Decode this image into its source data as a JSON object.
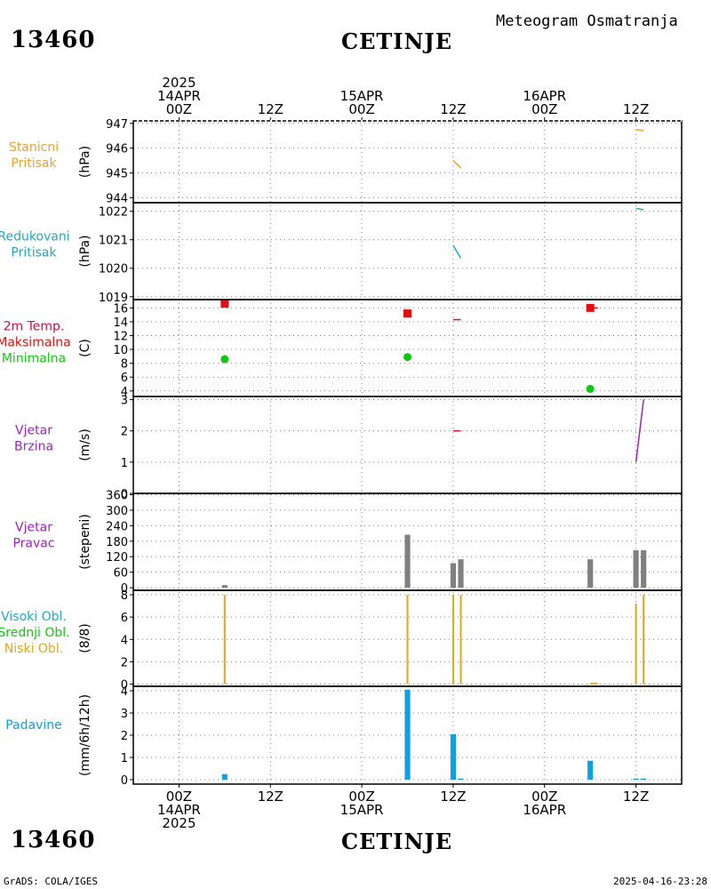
{
  "header": {
    "station_id": "13460",
    "station_name": "CETINJE",
    "title": "Meteogram Osmatranja"
  },
  "footer": {
    "left": "GrADS: COLA/IGES",
    "right": "2025-04-16-23:28"
  },
  "colors": {
    "orange": "#f0a030",
    "cyan": "#20a8c8",
    "red": "#e01010",
    "green": "#10c810",
    "crimson": "#d01040",
    "purple": "#a020c0",
    "gray": "#808080",
    "gold": "#e0a820",
    "blue": "#10a0e0"
  },
  "chart_data": {
    "type": "meteogram",
    "x_range_hours": [
      -6,
      66
    ],
    "x_ticks": [
      {
        "hour": 0,
        "top": [
          "2025",
          "14APR",
          "00Z"
        ],
        "bottom": [
          "00Z",
          "14APR",
          "2025"
        ]
      },
      {
        "hour": 12,
        "top": [
          "12Z"
        ],
        "bottom": [
          "12Z"
        ]
      },
      {
        "hour": 24,
        "top": [
          "15APR",
          "00Z"
        ],
        "bottom": [
          "00Z",
          "15APR"
        ]
      },
      {
        "hour": 36,
        "top": [
          "12Z"
        ],
        "bottom": [
          "12Z"
        ]
      },
      {
        "hour": 48,
        "top": [
          "16APR",
          "00Z"
        ],
        "bottom": [
          "00Z",
          "16APR"
        ]
      },
      {
        "hour": 60,
        "top": [
          "12Z"
        ],
        "bottom": [
          "12Z"
        ]
      }
    ],
    "panels": [
      {
        "id": "station-pressure",
        "labels": [
          {
            "text": "Stanicni",
            "color": "#f0a030"
          },
          {
            "text": "Pritisak",
            "color": "#f0a030"
          }
        ],
        "ylabel": "(hPa)",
        "ylim": [
          943.8,
          947.1
        ],
        "yticks": [
          944,
          945,
          946,
          947
        ],
        "lines": [
          {
            "color": "#f0a030",
            "points": [
              [
                36,
                945.5
              ],
              [
                37,
                945.2
              ]
            ]
          },
          {
            "color": "#f0a030",
            "points": [
              [
                60,
                946.75
              ],
              [
                61,
                946.7
              ]
            ]
          }
        ]
      },
      {
        "id": "reduced-pressure",
        "labels": [
          {
            "text": "Redukovani",
            "color": "#20a8c8"
          },
          {
            "text": "Pritisak",
            "color": "#20a8c8"
          }
        ],
        "ylabel": "(hPa)",
        "ylim": [
          1018.9,
          1022.3
        ],
        "yticks": [
          1019,
          1020,
          1021,
          1022
        ],
        "lines": [
          {
            "color": "#20a8c8",
            "points": [
              [
                36,
                1020.8
              ],
              [
                37,
                1020.35
              ]
            ]
          },
          {
            "color": "#20a8c8",
            "points": [
              [
                60,
                1022.1
              ],
              [
                61,
                1022.05
              ]
            ]
          }
        ]
      },
      {
        "id": "temperature",
        "labels": [
          {
            "text": "2m Temp.",
            "color": "#d01040"
          },
          {
            "text": "Maksimalna",
            "color": "#e01010"
          },
          {
            "text": "Minimalna",
            "color": "#10c810"
          }
        ],
        "ylabel": "(C)",
        "ylim": [
          3.2,
          17.2
        ],
        "yticks": [
          4,
          6,
          8,
          10,
          12,
          14,
          16
        ],
        "max_points": [
          [
            6,
            16.6
          ],
          [
            30,
            15.2
          ],
          [
            54,
            16.0
          ]
        ],
        "min_points": [
          [
            6,
            8.6
          ],
          [
            30,
            8.9
          ],
          [
            54,
            4.3
          ]
        ],
        "lines": [
          {
            "color": "#d01040",
            "points": [
              [
                36,
                14.3
              ],
              [
                37,
                14.3
              ]
            ]
          },
          {
            "color": "#e01010",
            "points": [
              [
                54,
                16.0
              ],
              [
                55,
                16.0
              ]
            ]
          }
        ]
      },
      {
        "id": "wind-speed",
        "labels": [
          {
            "text": "Vjetar",
            "color": "#a020c0"
          },
          {
            "text": "Brzina",
            "color": "#a020c0"
          }
        ],
        "ylabel": "(m/s)",
        "ylim": [
          0,
          3.1
        ],
        "yticks": [
          0,
          1,
          2,
          3
        ],
        "lines": [
          {
            "color": "#d01040",
            "points": [
              [
                36,
                2.0
              ],
              [
                37,
                2.0
              ]
            ]
          },
          {
            "color": "#a020c0",
            "points": [
              [
                60,
                1.0
              ],
              [
                61,
                3.0
              ]
            ]
          }
        ]
      },
      {
        "id": "wind-direction",
        "labels": [
          {
            "text": "Vjetar",
            "color": "#a020c0"
          },
          {
            "text": "Pravac",
            "color": "#a020c0"
          }
        ],
        "ylabel": "(stepeni)",
        "ylim": [
          -10,
          365
        ],
        "yticks": [
          0,
          60,
          120,
          180,
          240,
          300,
          360
        ],
        "bars": {
          "color": "#808080",
          "width_hours": 0.9,
          "points": [
            [
              6,
              10
            ],
            [
              30,
              205
            ],
            [
              36,
              95
            ],
            [
              37,
              110
            ],
            [
              54,
              110
            ],
            [
              60,
              145
            ],
            [
              61,
              145
            ]
          ]
        }
      },
      {
        "id": "clouds",
        "labels": [
          {
            "text": "Visoki Obl.",
            "color": "#20a8c8"
          },
          {
            "text": "Srednji Obl.",
            "color": "#10c810"
          },
          {
            "text": "Niski Obl.",
            "color": "#e0a820"
          }
        ],
        "ylabel": "(8/8)",
        "ylim": [
          -0.2,
          8.4
        ],
        "yticks": [
          0,
          2,
          4,
          6,
          8
        ],
        "bars": {
          "color": "#e0a820",
          "width_hours": 0.3,
          "points": [
            [
              6,
              8
            ],
            [
              30,
              8
            ],
            [
              36,
              8
            ],
            [
              37,
              8
            ],
            [
              60,
              7.2
            ],
            [
              61,
              8
            ]
          ]
        },
        "lines": [
          {
            "color": "#e0a820",
            "points": [
              [
                54,
                0.05
              ],
              [
                55,
                0.05
              ]
            ]
          }
        ]
      },
      {
        "id": "precipitation",
        "labels": [
          {
            "text": "Padavine",
            "color": "#10a0e0"
          }
        ],
        "ylabel": "(mm/6h/12h)",
        "ylim": [
          -0.2,
          4.2
        ],
        "yticks": [
          0,
          1,
          2,
          3,
          4
        ],
        "bars": {
          "color": "#10a0e0",
          "width_hours": 0.9,
          "points": [
            [
              6,
              0.25
            ],
            [
              30,
              4.05
            ],
            [
              36,
              2.05
            ],
            [
              37,
              0.05
            ],
            [
              54,
              0.85
            ],
            [
              60,
              0.05
            ],
            [
              61,
              0.05
            ]
          ]
        }
      }
    ]
  }
}
